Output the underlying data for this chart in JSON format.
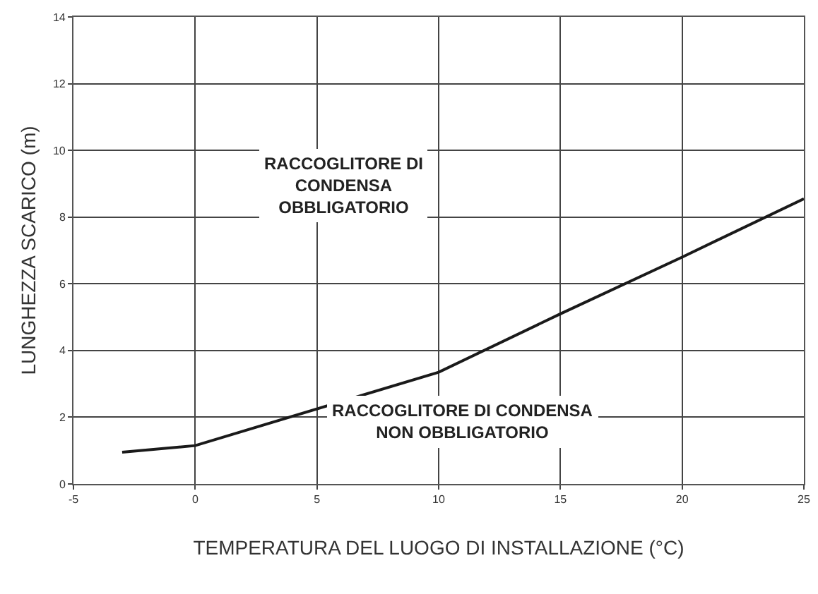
{
  "chart_data": {
    "type": "line",
    "xlabel": "TEMPERATURA DEL LUOGO DI INSTALLAZIONE (°C)",
    "ylabel": "LUNGHEZZA SCARICO (m)",
    "x": [
      -3,
      0,
      10,
      15,
      20,
      25
    ],
    "series": [
      {
        "color": "#1a1a1a",
        "values": [
          0.95,
          1.15,
          3.35,
          5.1,
          6.8,
          8.55
        ]
      }
    ],
    "xlim": [
      -5,
      25
    ],
    "xticks": [
      -5,
      0,
      5,
      10,
      15,
      20,
      25
    ],
    "ylim": [
      0,
      14
    ],
    "yticks": [
      0,
      2,
      4,
      6,
      8,
      10,
      12,
      14
    ],
    "grid": true,
    "marker": "none",
    "line_style": "solid",
    "annotations": [
      "RACCOGLITORE DI\nCONDENSA\nOBBLIGATORIO",
      "RACCOGLITORE DI CONDENSA\nNON OBBLIGATORIO"
    ]
  }
}
